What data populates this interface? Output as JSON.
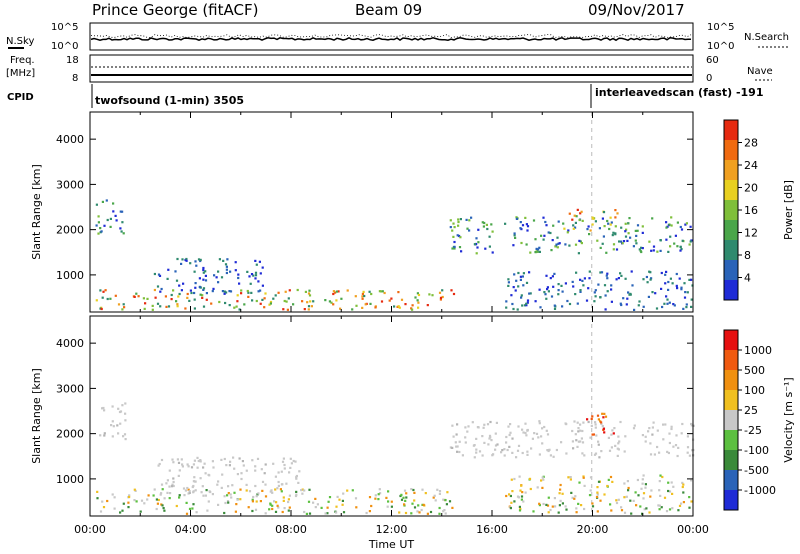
{
  "header": {
    "station": "Prince George (fitACF)",
    "beam": "Beam 09",
    "date": "09/Nov/2017"
  },
  "top_panels": {
    "nsky_label": "N.Sky",
    "nsearch_label": "N.Search",
    "exp_top": "10^5",
    "exp_bottom": "10^0",
    "exp_top_right": "10^5",
    "exp_bottom_right": "10^0",
    "freq_label": "Freq.",
    "freq_unit": "[MHz]",
    "freq_top": "18",
    "freq_bottom": "8",
    "nave_label": "Nave",
    "nave_top": "60",
    "nave_bottom": "0",
    "cpid_label": "CPID",
    "cpid_1": "twofsound (1-min) 3505",
    "cpid_2": "interleavedscan (fast) -191"
  },
  "chart_data": [
    {
      "type": "scatter",
      "name": "power_panel",
      "ylabel": "Slant Range [km]",
      "xlabel": "",
      "ylim": [
        180,
        4600
      ],
      "xlim": [
        0,
        24
      ],
      "yticks": [
        "4000",
        "3000",
        "2000",
        "1000"
      ],
      "colorbar": {
        "label": "Power [dB]",
        "ticks": [
          "28",
          "24",
          "20",
          "16",
          "12",
          "8",
          "4"
        ],
        "colors": [
          "#1f2bd6",
          "#2a63b8",
          "#2f8a6e",
          "#4aa64a",
          "#7fbf3a",
          "#e8d020",
          "#f0a020",
          "#f06a10",
          "#e62a10"
        ]
      },
      "echo_regions": [
        {
          "t0": 0.2,
          "t1": 1.4,
          "r0": 1900,
          "r1": 2700,
          "p": "mid"
        },
        {
          "t0": 0.2,
          "t1": 14.5,
          "r0": 250,
          "r1": 700,
          "p": "high"
        },
        {
          "t0": 2.5,
          "t1": 7.0,
          "r0": 600,
          "r1": 1400,
          "p": "low"
        },
        {
          "t0": 14.3,
          "t1": 24.0,
          "r0": 1500,
          "r1": 2300,
          "p": "mid"
        },
        {
          "t0": 18.8,
          "t1": 21.0,
          "r0": 2000,
          "r1": 2500,
          "p": "high"
        },
        {
          "t0": 16.5,
          "t1": 24.0,
          "r0": 250,
          "r1": 1100,
          "p": "low"
        }
      ]
    },
    {
      "type": "scatter",
      "name": "velocity_panel",
      "ylabel": "Slant Range [km]",
      "xlabel": "Time UT",
      "ylim": [
        180,
        4600
      ],
      "xlim": [
        0,
        24
      ],
      "yticks": [
        "4000",
        "3000",
        "2000",
        "1000"
      ],
      "xticks": [
        "00:00",
        "04:00",
        "08:00",
        "12:00",
        "16:00",
        "20:00",
        "00:00"
      ],
      "colorbar": {
        "label": "Velocity [m s⁻¹]",
        "ticks": [
          "1000",
          "500",
          "100",
          "25",
          "-25",
          "-100",
          "-500",
          "-1000"
        ],
        "colors": [
          "#1f2bd6",
          "#2a63b8",
          "#3a8a3a",
          "#5cc040",
          "#c8c8c8",
          "#f0c020",
          "#f09010",
          "#f05a10",
          "#e61010"
        ]
      },
      "echo_regions": [
        {
          "t0": 0.2,
          "t1": 1.4,
          "r0": 1900,
          "r1": 2700,
          "v": "ground"
        },
        {
          "t0": 0.2,
          "t1": 14.5,
          "r0": 250,
          "r1": 800,
          "v": "mixed"
        },
        {
          "t0": 2.5,
          "t1": 8.5,
          "r0": 600,
          "r1": 1500,
          "v": "ground"
        },
        {
          "t0": 14.3,
          "t1": 24.0,
          "r0": 1500,
          "r1": 2300,
          "v": "ground"
        },
        {
          "t0": 19.5,
          "t1": 20.9,
          "r0": 2000,
          "r1": 2500,
          "v": "red"
        },
        {
          "t0": 16.5,
          "t1": 24.0,
          "r0": 250,
          "r1": 1100,
          "v": "mixed"
        }
      ]
    }
  ]
}
